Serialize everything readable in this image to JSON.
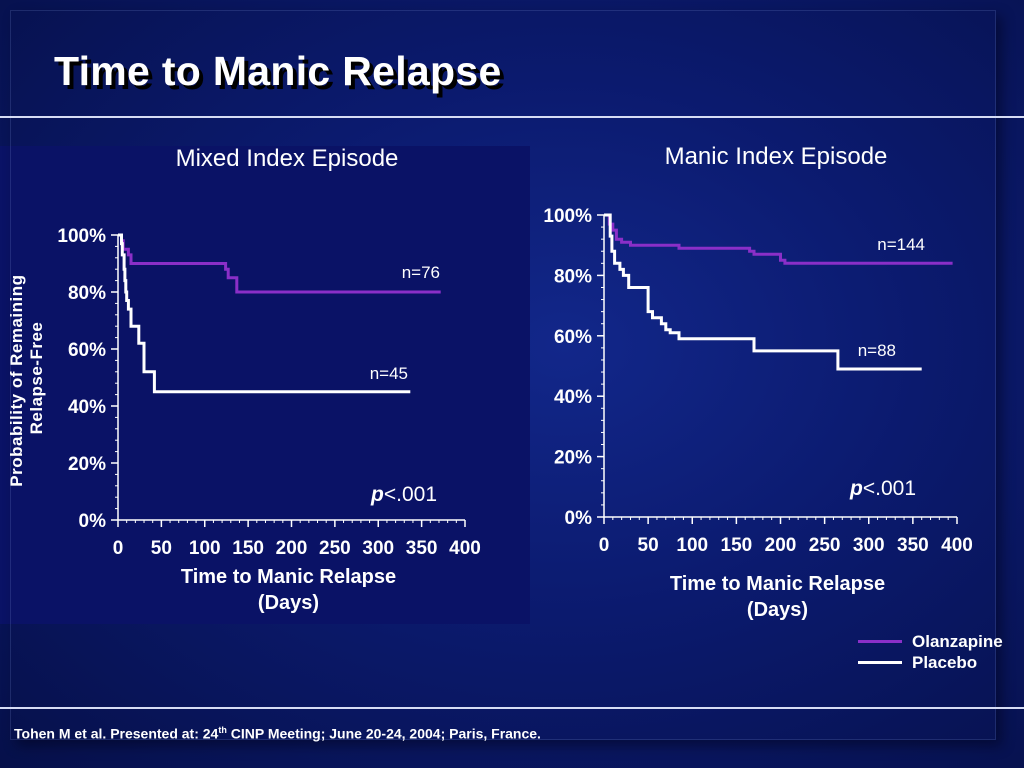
{
  "slide": {
    "title": "Time to Manic Relapse",
    "y_axis_label_line1": "Probability of Remaining",
    "y_axis_label_line2": "Relapse-Free",
    "footnote_pre": "Tohen M et al.  Presented at:  24",
    "footnote_sup": "th",
    "footnote_post": " CINP Meeting; June 20-24, 2004; Paris, France."
  },
  "legend": {
    "entries": [
      {
        "label": "Olanzapine",
        "color": "#8a2fc8"
      },
      {
        "label": "Placebo",
        "color": "#ffffff"
      }
    ]
  },
  "chart_data": [
    {
      "type": "line",
      "step": true,
      "title": "Mixed Index Episode",
      "xlabel_line1": "Time to Manic Relapse",
      "xlabel_line2": "(Days)",
      "ylabel": "Probability of Remaining Relapse-Free",
      "xlim": [
        0,
        400
      ],
      "ylim": [
        0,
        100
      ],
      "xticks": [
        0,
        50,
        100,
        150,
        200,
        250,
        300,
        350,
        400
      ],
      "yticks": [
        0,
        20,
        40,
        60,
        80,
        100
      ],
      "y_tick_suffix": "%",
      "p_value_prefix": "p",
      "p_value_text": "<.001",
      "series": [
        {
          "name": "Olanzapine",
          "color": "#8a2fc8",
          "n_label": "n=76",
          "x": [
            0,
            2,
            4,
            6,
            9,
            12,
            15,
            20,
            124,
            127,
            135,
            137,
            372
          ],
          "y": [
            100,
            100,
            98,
            95,
            95,
            93,
            90,
            90,
            88,
            85,
            85,
            80,
            80
          ]
        },
        {
          "name": "Placebo",
          "color": "#ffffff",
          "n_label": "n=45",
          "x": [
            0,
            3,
            4,
            5,
            7,
            8,
            9,
            10,
            12,
            15,
            24,
            30,
            40,
            42,
            337
          ],
          "y": [
            100,
            100,
            97,
            93,
            88,
            84,
            80,
            77,
            74,
            68,
            62,
            52,
            52,
            45,
            45
          ]
        }
      ]
    },
    {
      "type": "line",
      "step": true,
      "title": "Manic Index Episode",
      "xlabel_line1": "Time to Manic Relapse",
      "xlabel_line2": "(Days)",
      "xlim": [
        0,
        400
      ],
      "ylim": [
        0,
        100
      ],
      "xticks": [
        0,
        50,
        100,
        150,
        200,
        250,
        300,
        350,
        400
      ],
      "yticks": [
        0,
        20,
        40,
        60,
        80,
        100
      ],
      "y_tick_suffix": "%",
      "p_value_prefix": "p",
      "p_value_text": "<.001",
      "series": [
        {
          "name": "Olanzapine",
          "color": "#8a2fc8",
          "n_label": "n=144",
          "x": [
            0,
            4,
            6,
            10,
            14,
            20,
            30,
            85,
            165,
            170,
            200,
            205,
            395
          ],
          "y": [
            100,
            100,
            97,
            95,
            92,
            91,
            90,
            89,
            88,
            87,
            85,
            84,
            84
          ]
        },
        {
          "name": "Placebo",
          "color": "#ffffff",
          "n_label": "n=88",
          "x": [
            0,
            5,
            7,
            9,
            12,
            18,
            22,
            28,
            45,
            50,
            55,
            65,
            70,
            75,
            85,
            170,
            265,
            360
          ],
          "y": [
            100,
            100,
            93,
            88,
            84,
            82,
            80,
            76,
            76,
            68,
            66,
            64,
            62,
            61,
            59,
            55,
            49,
            49
          ]
        }
      ]
    }
  ]
}
